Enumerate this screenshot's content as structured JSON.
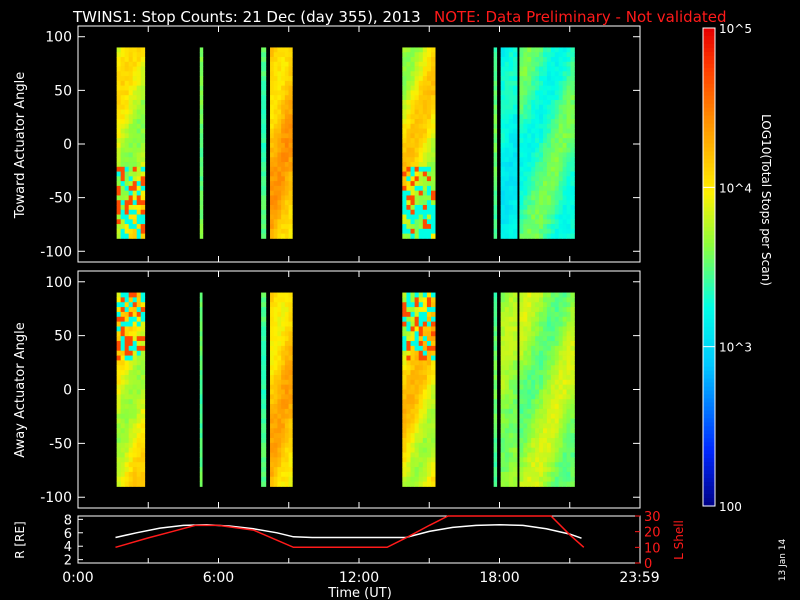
{
  "header": {
    "title": "TWINS1: Stop Counts: 21 Dec (day 355), 2013",
    "note": "NOTE: Data Preliminary - Not validated"
  },
  "colors": {
    "background": "#000000",
    "axes": "#ffffff",
    "note": "#ff1a1a",
    "orbit_r": "#ffffff",
    "orbit_lshell": "#ff1a1a"
  },
  "colorbar": {
    "label": "LOG10(Total Stops per Scan)",
    "scale": "log",
    "range": [
      100,
      100000
    ],
    "tick_labels": [
      "10^5",
      "10^4",
      "10^3",
      "100"
    ],
    "tick_values": [
      100000,
      10000,
      1000,
      100
    ]
  },
  "chart_data": [
    {
      "type": "heatmap",
      "ylabel": "Toward Actuator Angle",
      "xlim": [
        0,
        24
      ],
      "ylim": [
        -110,
        110
      ],
      "y_ticks": [
        100,
        50,
        0,
        -50,
        -100
      ],
      "data_y_range": [
        -88,
        90
      ],
      "blocks": [
        {
          "t0": 1.65,
          "t1": 2.85,
          "level": 0.62,
          "y_variation": 0.1,
          "mottled_lower": true
        },
        {
          "t0": 5.2,
          "t1": 5.33,
          "level": 0.52,
          "y_variation": 0.03
        },
        {
          "t0": 7.82,
          "t1": 8.02,
          "level": 0.48,
          "y_variation": 0.03
        },
        {
          "t0": 8.2,
          "t1": 9.15,
          "level": 0.74,
          "y_variation": 0.08
        },
        {
          "t0": 13.85,
          "t1": 15.25,
          "level": 0.64,
          "y_variation": 0.12,
          "mottled_lower": true
        },
        {
          "t0": 17.75,
          "t1": 17.88,
          "level": 0.5,
          "y_variation": 0.03
        },
        {
          "t0": 18.05,
          "t1": 18.75,
          "level": 0.4,
          "y_variation": 0.05
        },
        {
          "t0": 18.85,
          "t1": 21.2,
          "level": 0.47,
          "y_variation": 0.08
        }
      ]
    },
    {
      "type": "heatmap",
      "ylabel": "Away Actuator Angle",
      "xlim": [
        0,
        24
      ],
      "ylim": [
        -110,
        110
      ],
      "y_ticks": [
        100,
        50,
        0,
        -50,
        -100
      ],
      "data_y_range": [
        -90,
        90
      ],
      "blocks": [
        {
          "t0": 1.65,
          "t1": 2.85,
          "level": 0.64,
          "y_variation": 0.1,
          "mottled_upper": true
        },
        {
          "t0": 5.2,
          "t1": 5.3,
          "level": 0.5,
          "y_variation": 0.03
        },
        {
          "t0": 7.82,
          "t1": 8.02,
          "level": 0.48,
          "y_variation": 0.03
        },
        {
          "t0": 8.2,
          "t1": 9.15,
          "level": 0.72,
          "y_variation": 0.08
        },
        {
          "t0": 13.85,
          "t1": 15.25,
          "level": 0.66,
          "y_variation": 0.12,
          "mottled_upper": true
        },
        {
          "t0": 17.75,
          "t1": 17.88,
          "level": 0.5,
          "y_variation": 0.03
        },
        {
          "t0": 18.05,
          "t1": 18.75,
          "level": 0.56,
          "y_variation": 0.05
        },
        {
          "t0": 18.85,
          "t1": 21.2,
          "level": 0.56,
          "y_variation": 0.08
        }
      ]
    },
    {
      "type": "line",
      "xlim": [
        0,
        24
      ],
      "xlabel": "Time (UT)",
      "x_tick_labels": [
        "0:00",
        "6:00",
        "12:00",
        "18:00",
        "23:59"
      ],
      "x_tick_values": [
        0,
        6,
        12,
        18,
        23.98
      ],
      "y_left": {
        "label": "R [RE]",
        "ylim": [
          1.5,
          8.5
        ],
        "ticks": [
          8,
          6,
          4,
          2
        ]
      },
      "y_right": {
        "label": "L Shell",
        "ylim": [
          0,
          30
        ],
        "ticks": [
          30,
          20,
          10,
          0
        ]
      },
      "series": [
        {
          "axis": "left",
          "color": "#ffffff",
          "x": [
            1.6,
            2.5,
            3.5,
            4.5,
            5.5,
            6.5,
            7.5,
            8.5,
            9.2,
            10,
            11,
            12,
            13,
            14,
            15,
            16,
            17,
            18,
            19,
            20,
            21,
            21.5
          ],
          "y": [
            5.3,
            6.0,
            6.7,
            7.1,
            7.2,
            7.0,
            6.6,
            6.0,
            5.4,
            5.3,
            5.3,
            5.3,
            5.3,
            5.3,
            6.2,
            6.8,
            7.1,
            7.2,
            7.1,
            6.6,
            5.8,
            5.2
          ]
        },
        {
          "axis": "right",
          "color": "#ff1a1a",
          "x": [
            1.6,
            3.0,
            4.0,
            5.0,
            6.0,
            7.5,
            9.2,
            11.0,
            13.2,
            14.0,
            15.0,
            15.8,
            16.5,
            20.2,
            21.0,
            21.6
          ],
          "y": [
            10,
            16,
            20,
            24,
            24,
            21,
            10,
            10,
            10,
            16,
            24,
            30,
            30,
            30,
            18,
            10
          ]
        }
      ]
    }
  ],
  "footer": {
    "date_stamp": "13 Jan 14"
  }
}
